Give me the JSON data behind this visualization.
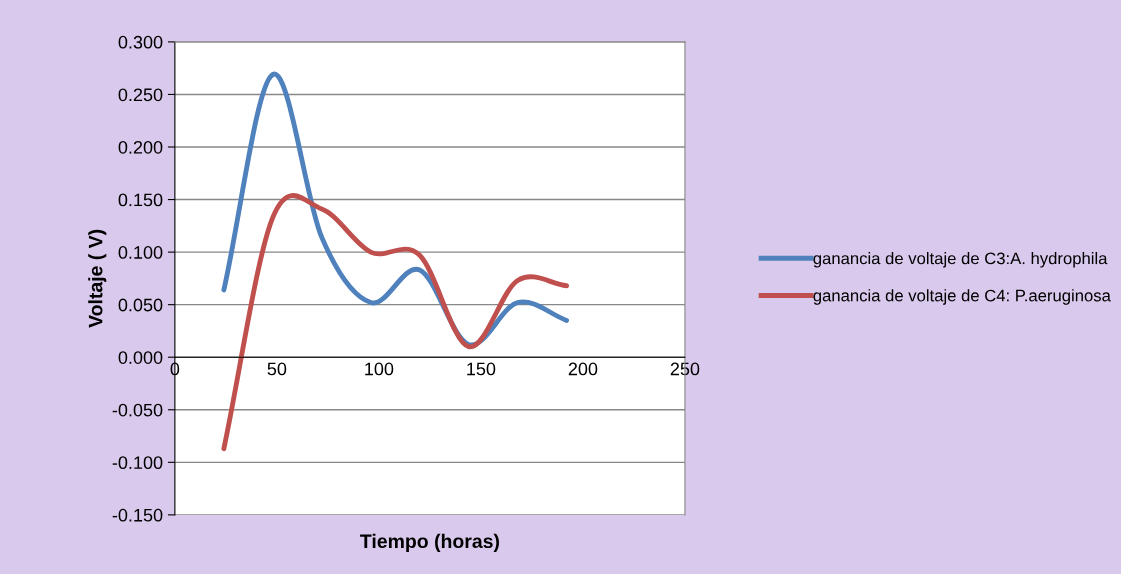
{
  "chart_data": {
    "type": "line",
    "xlabel": "Tiempo (horas)",
    "ylabel": "Voltaje ( V)",
    "xlim": [
      0,
      250
    ],
    "xticks": [
      0,
      50,
      100,
      150,
      200,
      250
    ],
    "ylim": [
      -0.15,
      0.3
    ],
    "yticks": [
      {
        "value": -0.15,
        "label": "-0.150"
      },
      {
        "value": -0.1,
        "label": "-0.100"
      },
      {
        "value": -0.05,
        "label": "-0.050"
      },
      {
        "value": 0,
        "label": "0.000"
      },
      {
        "value": 0.05,
        "label": "0.050"
      },
      {
        "value": 0.1,
        "label": "0.100"
      },
      {
        "value": 0.15,
        "label": "0.150"
      },
      {
        "value": 0.2,
        "label": "0.200"
      },
      {
        "value": 0.25,
        "label": "0.250"
      },
      {
        "value": 0.3,
        "label": "0.300"
      }
    ],
    "x": [
      24,
      48,
      72,
      96,
      120,
      144,
      168,
      192
    ],
    "series": [
      {
        "name": "ganancia de voltaje de C3:A. hydrophila",
        "color": "#4f81bd",
        "values": [
          0.064,
          0.269,
          0.114,
          0.052,
          0.083,
          0.012,
          0.052,
          0.035
        ]
      },
      {
        "name": "ganancia de voltaje de C4: P.aeruginosa",
        "color": "#c0504d",
        "values": [
          -0.087,
          0.133,
          0.141,
          0.1,
          0.097,
          0.01,
          0.073,
          0.068
        ]
      }
    ],
    "grid": "y",
    "legend": "right",
    "line_style": "solid",
    "marker": "none"
  }
}
